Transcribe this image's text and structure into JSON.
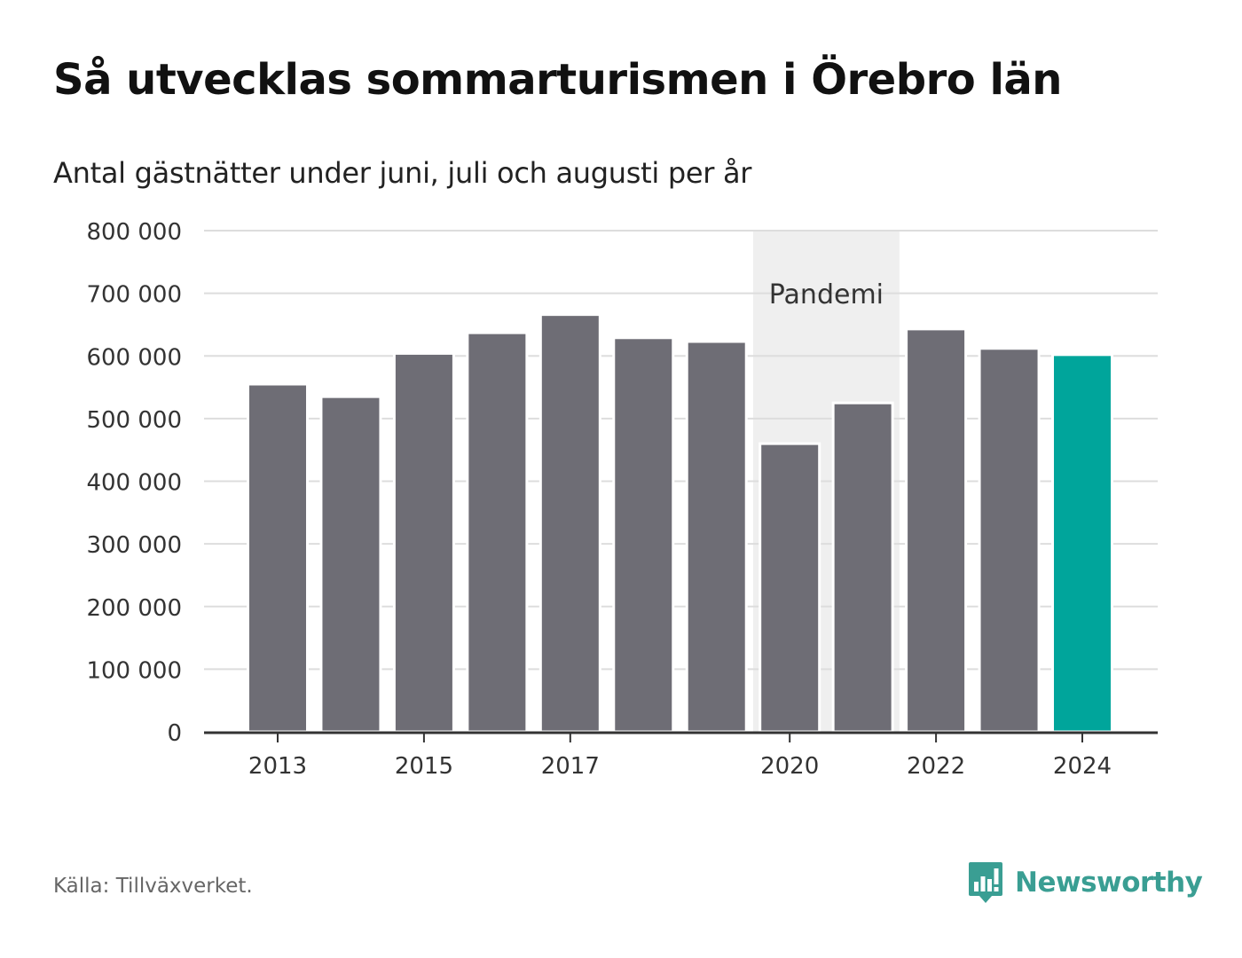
{
  "title": "Så utvecklas sommarturismen i Örebro län",
  "subtitle": "Antal gästnätter under juni, juli och augusti per år",
  "source": "Källa: Tillväxverket.",
  "brand": {
    "name": "Newsworthy",
    "color": "#3a9e93"
  },
  "colors": {
    "bar": "#6e6d75",
    "highlight": "#00a59b",
    "band": "#efefef",
    "grid": "#dddddd",
    "axis": "#333333"
  },
  "chart_data": {
    "type": "bar",
    "categories": [
      2013,
      2014,
      2015,
      2016,
      2017,
      2018,
      2019,
      2020,
      2021,
      2022,
      2023,
      2024
    ],
    "values": [
      555000,
      535000,
      604000,
      637000,
      666000,
      629000,
      623000,
      460000,
      525000,
      643000,
      612000,
      602000
    ],
    "highlight_category": 2024,
    "x_tick_labels": [
      "2013",
      "2015",
      "2017",
      "2020",
      "2022",
      "2024"
    ],
    "y_tick_labels": [
      "0",
      "100 000",
      "200 000",
      "300 000",
      "400 000",
      "500 000",
      "600 000",
      "700 000",
      "800 000"
    ],
    "ylim": [
      0,
      800000
    ],
    "grid": true,
    "annotation": {
      "label": "Pandemi",
      "from": 2020,
      "to": 2021
    }
  }
}
